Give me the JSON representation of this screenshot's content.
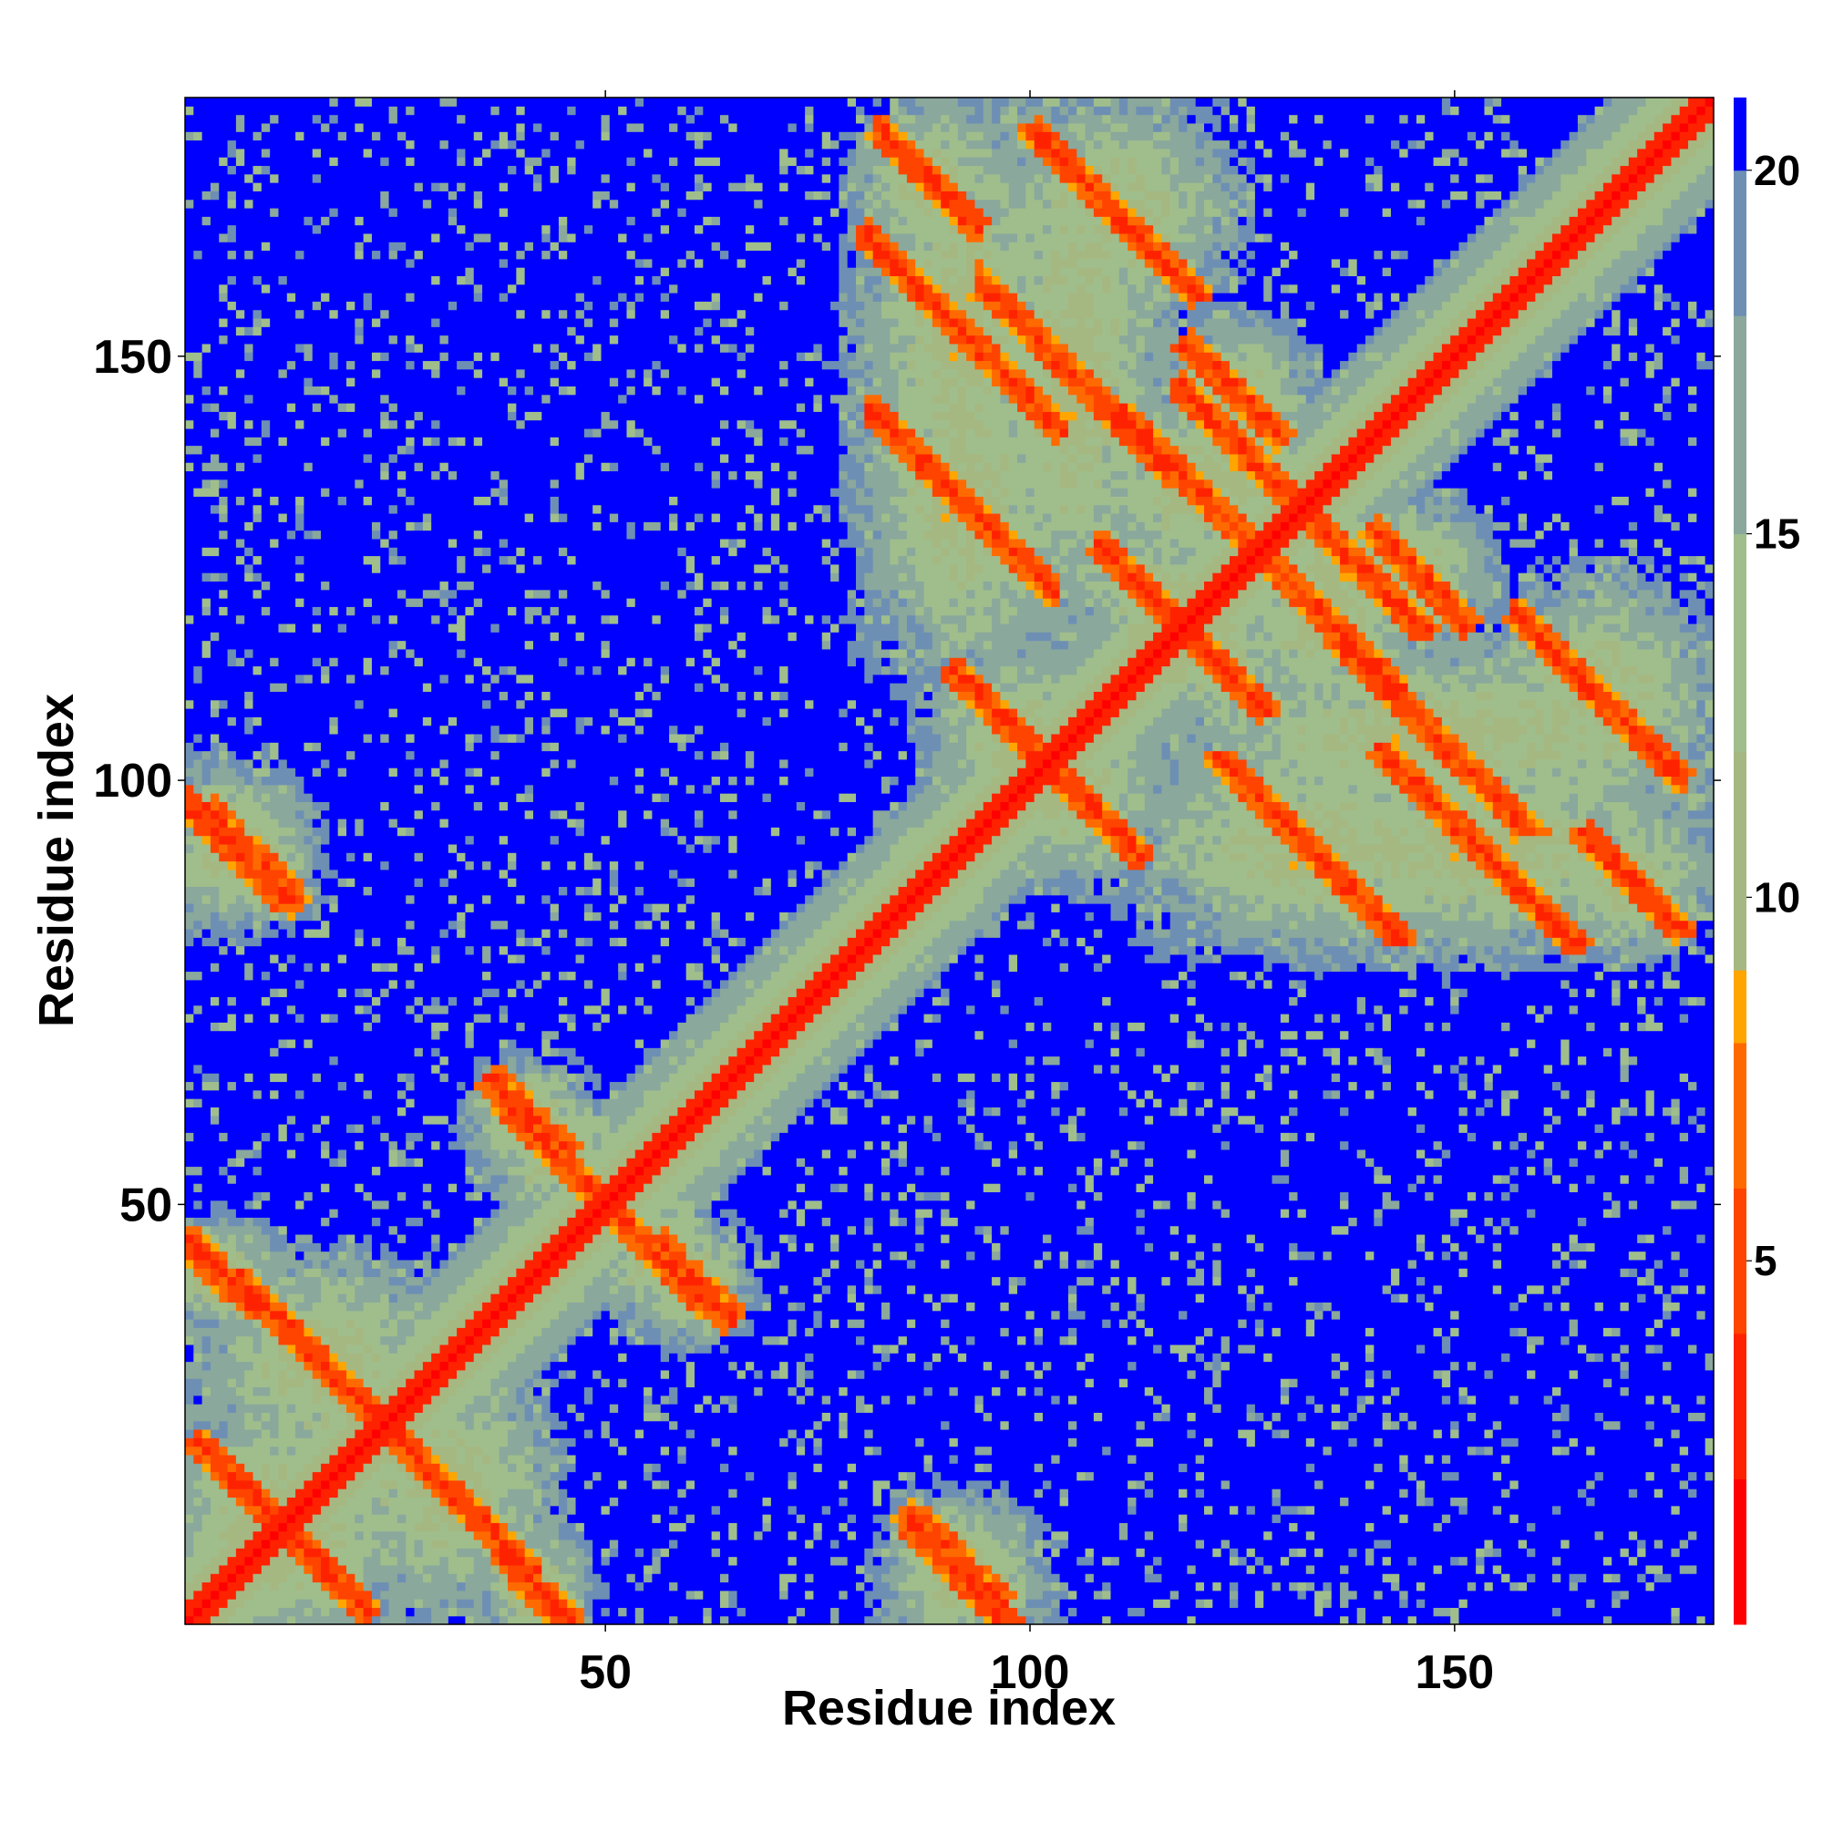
{
  "chart_data": {
    "type": "heatmap",
    "title": "",
    "xlabel": "Residue index",
    "ylabel": "Residue index",
    "n_residues": 180,
    "xlim": [
      1,
      180
    ],
    "ylim": [
      1,
      180
    ],
    "x_ticks": [
      50,
      100,
      150
    ],
    "y_ticks": [
      50,
      100,
      150
    ],
    "colorbar": {
      "range": [
        0,
        21
      ],
      "ticks": [
        5,
        10,
        15,
        20
      ],
      "stops": [
        {
          "value": 0,
          "color": "#ff0000"
        },
        {
          "value": 2,
          "color": "#ff2200"
        },
        {
          "value": 4,
          "color": "#ff4400"
        },
        {
          "value": 6,
          "color": "#ff6a00"
        },
        {
          "value": 8,
          "color": "#ffa500"
        },
        {
          "value": 9,
          "color": "#a6b882"
        },
        {
          "value": 12,
          "color": "#9fbe8c"
        },
        {
          "value": 15,
          "color": "#8aa89c"
        },
        {
          "value": 18,
          "color": "#6e8fb4"
        },
        {
          "value": 20,
          "color": "#0000ff"
        }
      ]
    },
    "color_low": "#ff0000",
    "color_mid": "#a2bb8a",
    "color_high": "#0000ff",
    "features": [
      {
        "kind": "diagonal",
        "from": 1,
        "to": 180
      },
      {
        "kind": "antiparallel_band",
        "i_range": [
          2,
          22
        ],
        "j_range": [
          2,
          22
        ]
      },
      {
        "kind": "contact_band",
        "i_range": [
          1,
          10
        ],
        "j_range": [
          87,
          98
        ]
      },
      {
        "kind": "contact_band",
        "i_range": [
          6,
          28
        ],
        "j_range": [
          22,
          40
        ]
      },
      {
        "kind": "contact_band",
        "i_range": [
          1,
          8
        ],
        "j_range": [
          40,
          44
        ]
      },
      {
        "kind": "contact_band",
        "i_range": [
          5,
          12
        ],
        "j_range": [
          87,
          95
        ]
      },
      {
        "kind": "contact_band",
        "i_range": [
          38,
          44
        ],
        "j_range": [
          58,
          63
        ]
      },
      {
        "kind": "contact_band",
        "i_range": [
          52,
          60
        ],
        "j_range": [
          40,
          48
        ]
      },
      {
        "kind": "contact_band",
        "i_range": [
          84,
          100
        ],
        "j_range": [
          130,
          176
        ]
      },
      {
        "kind": "contact_band",
        "i_range": [
          92,
          106
        ],
        "j_range": [
          98,
          112
        ]
      },
      {
        "kind": "contact_band",
        "i_range": [
          98,
          112
        ],
        "j_range": [
          120,
          176
        ]
      },
      {
        "kind": "contact_band",
        "i_range": [
          110,
          122
        ],
        "j_range": [
          112,
          128
        ]
      },
      {
        "kind": "contact_band",
        "i_range": [
          116,
          150
        ],
        "j_range": [
          84,
          100
        ]
      },
      {
        "kind": "contact_band",
        "i_range": [
          120,
          130
        ],
        "j_range": [
          130,
          148
        ]
      },
      {
        "kind": "contact_band",
        "i_range": [
          128,
          142
        ],
        "j_range": [
          112,
          126
        ]
      },
      {
        "kind": "contact_band",
        "i_range": [
          142,
          150
        ],
        "j_range": [
          120,
          128
        ]
      },
      {
        "kind": "contact_band",
        "i_range": [
          158,
          176
        ],
        "j_range": [
          100,
          120
        ]
      },
      {
        "kind": "contact_band",
        "i_range": [
          166,
          176
        ],
        "j_range": [
          84,
          92
        ]
      }
    ]
  }
}
